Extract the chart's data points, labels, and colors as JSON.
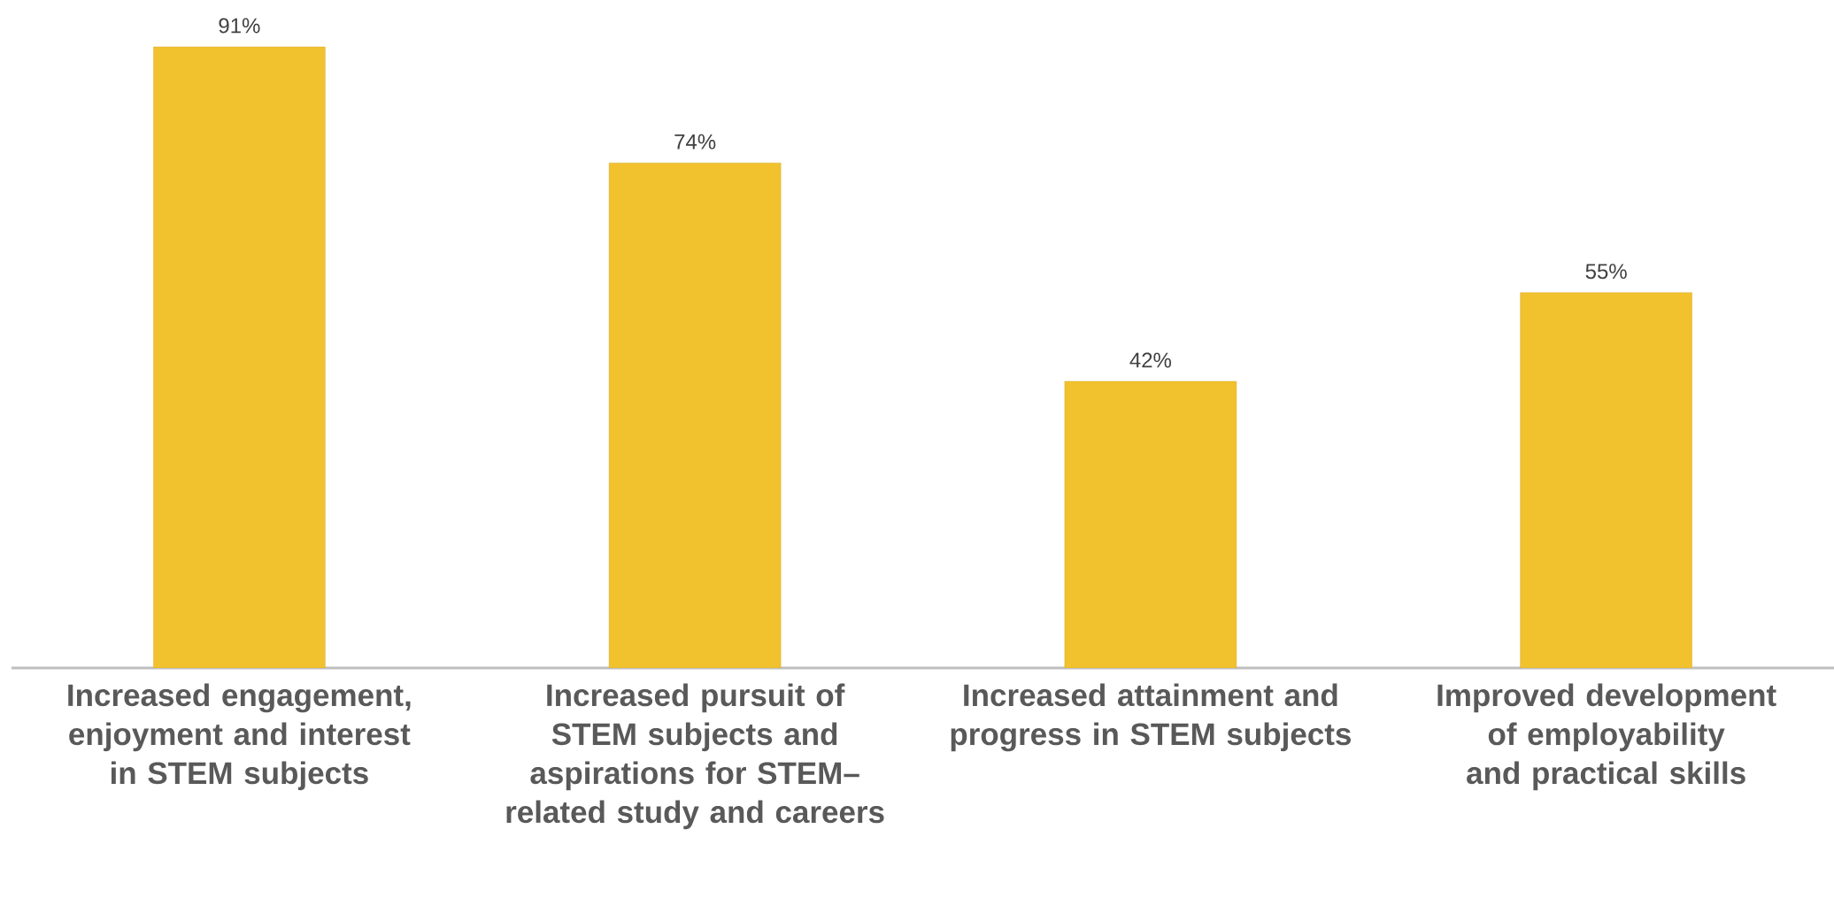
{
  "chart_data": {
    "type": "bar",
    "categories": [
      "Increased engagement, enjoyment and interest in STEM subjects",
      "Increased pursuit of STEM subjects and aspirations for STEM–related study and careers",
      "Increased attainment and progress in STEM subjects",
      "Improved development of employability and practical skills"
    ],
    "values": [
      91,
      74,
      42,
      55
    ],
    "value_labels": [
      "91%",
      "74%",
      "42%",
      "55%"
    ],
    "color": "#f2c12e"
  }
}
